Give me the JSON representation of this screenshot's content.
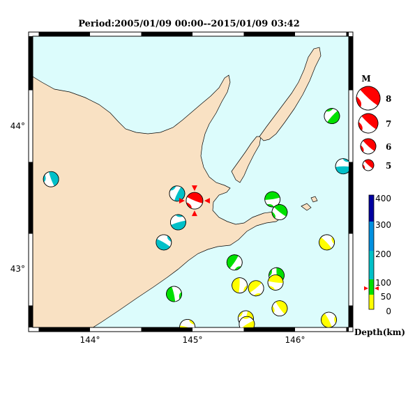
{
  "title": "Period:2005/01/09 00:00--2015/01/09 03:42",
  "axes": {
    "lon_ticks": [
      "144°",
      "145°",
      "146°"
    ],
    "lat_ticks": [
      "44°",
      "43°"
    ]
  },
  "magnitude_legend": {
    "label": "M",
    "items": [
      "8",
      "7",
      "6",
      "5"
    ]
  },
  "depth_colorbar": {
    "ticks": [
      "400",
      "300",
      "200",
      "100",
      "50",
      "0"
    ],
    "label": "Depth(km)",
    "marker_value": 70
  },
  "colors": {
    "land": "#f9e1c3",
    "sea": "#dcfcfc",
    "shallow": "#ffff00",
    "mid_shallow": "#00e000",
    "mid": "#00c0c8",
    "deep": "#0090e0",
    "very_deep": "#0000a0",
    "highlight": "#ff0000"
  },
  "events": [
    {
      "name": "latest",
      "lon": 145.02,
      "lat": 43.48,
      "color": "highlight"
    },
    {
      "name": "e1",
      "lon": 143.62,
      "lat": 43.63,
      "color": "mid"
    },
    {
      "name": "e2",
      "lon": 144.85,
      "lat": 43.53,
      "color": "mid"
    },
    {
      "name": "e3",
      "lon": 144.86,
      "lat": 43.33,
      "color": "mid"
    },
    {
      "name": "e4",
      "lon": 144.72,
      "lat": 43.19,
      "color": "mid"
    },
    {
      "name": "e5",
      "lon": 144.82,
      "lat": 42.83,
      "color": "mid_shallow"
    },
    {
      "name": "e6",
      "lon": 145.41,
      "lat": 43.05,
      "color": "mid_shallow"
    },
    {
      "name": "e7",
      "lon": 145.78,
      "lat": 43.49,
      "color": "mid_shallow"
    },
    {
      "name": "e8",
      "lon": 145.85,
      "lat": 43.4,
      "color": "mid_shallow"
    },
    {
      "name": "e9",
      "lon": 145.82,
      "lat": 42.96,
      "color": "mid_shallow"
    },
    {
      "name": "e10",
      "lon": 146.36,
      "lat": 44.07,
      "color": "mid_shallow"
    },
    {
      "name": "e11",
      "lon": 146.47,
      "lat": 43.72,
      "color": "mid"
    },
    {
      "name": "e12",
      "lon": 146.31,
      "lat": 43.19,
      "color": "shallow"
    },
    {
      "name": "e13",
      "lon": 145.46,
      "lat": 42.89,
      "color": "shallow"
    },
    {
      "name": "e14",
      "lon": 145.62,
      "lat": 42.87,
      "color": "shallow"
    },
    {
      "name": "e15",
      "lon": 145.81,
      "lat": 42.91,
      "color": "shallow"
    },
    {
      "name": "e16",
      "lon": 145.85,
      "lat": 42.73,
      "color": "shallow"
    },
    {
      "name": "e17",
      "lon": 145.52,
      "lat": 42.66,
      "color": "shallow"
    },
    {
      "name": "e18",
      "lon": 145.53,
      "lat": 42.62,
      "color": "shallow"
    },
    {
      "name": "e19",
      "lon": 144.95,
      "lat": 42.6,
      "color": "shallow"
    },
    {
      "name": "e20",
      "lon": 146.33,
      "lat": 42.65,
      "color": "shallow"
    }
  ]
}
